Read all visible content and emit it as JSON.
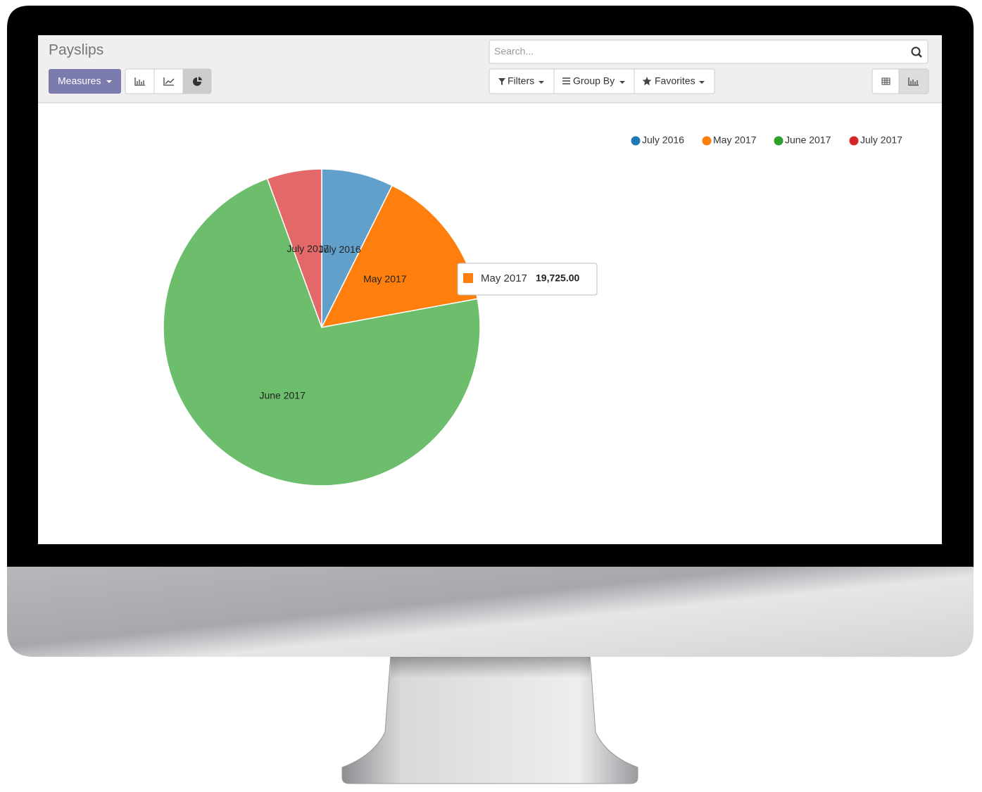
{
  "ui": {
    "title": "Payslips",
    "measures": "Measures",
    "search_placeholder": "Search...",
    "filters": "Filters",
    "group_by": "Group By",
    "favorites": "Favorites"
  },
  "chart_data": {
    "type": "pie",
    "categories": [
      "July 2016",
      "May 2017",
      "June 2017",
      "July 2017"
    ],
    "values": [
      9788,
      19725,
      96510,
      7452
    ],
    "colors": [
      "#62a0cc",
      "#ff7f0e",
      "#6cbd6c",
      "#e36969"
    ],
    "legend_colors": [
      "#1f77b4",
      "#ff7f0e",
      "#2ca02c",
      "#d62728"
    ],
    "tooltip": {
      "value": 19725,
      "label": "19,725.00"
    }
  }
}
